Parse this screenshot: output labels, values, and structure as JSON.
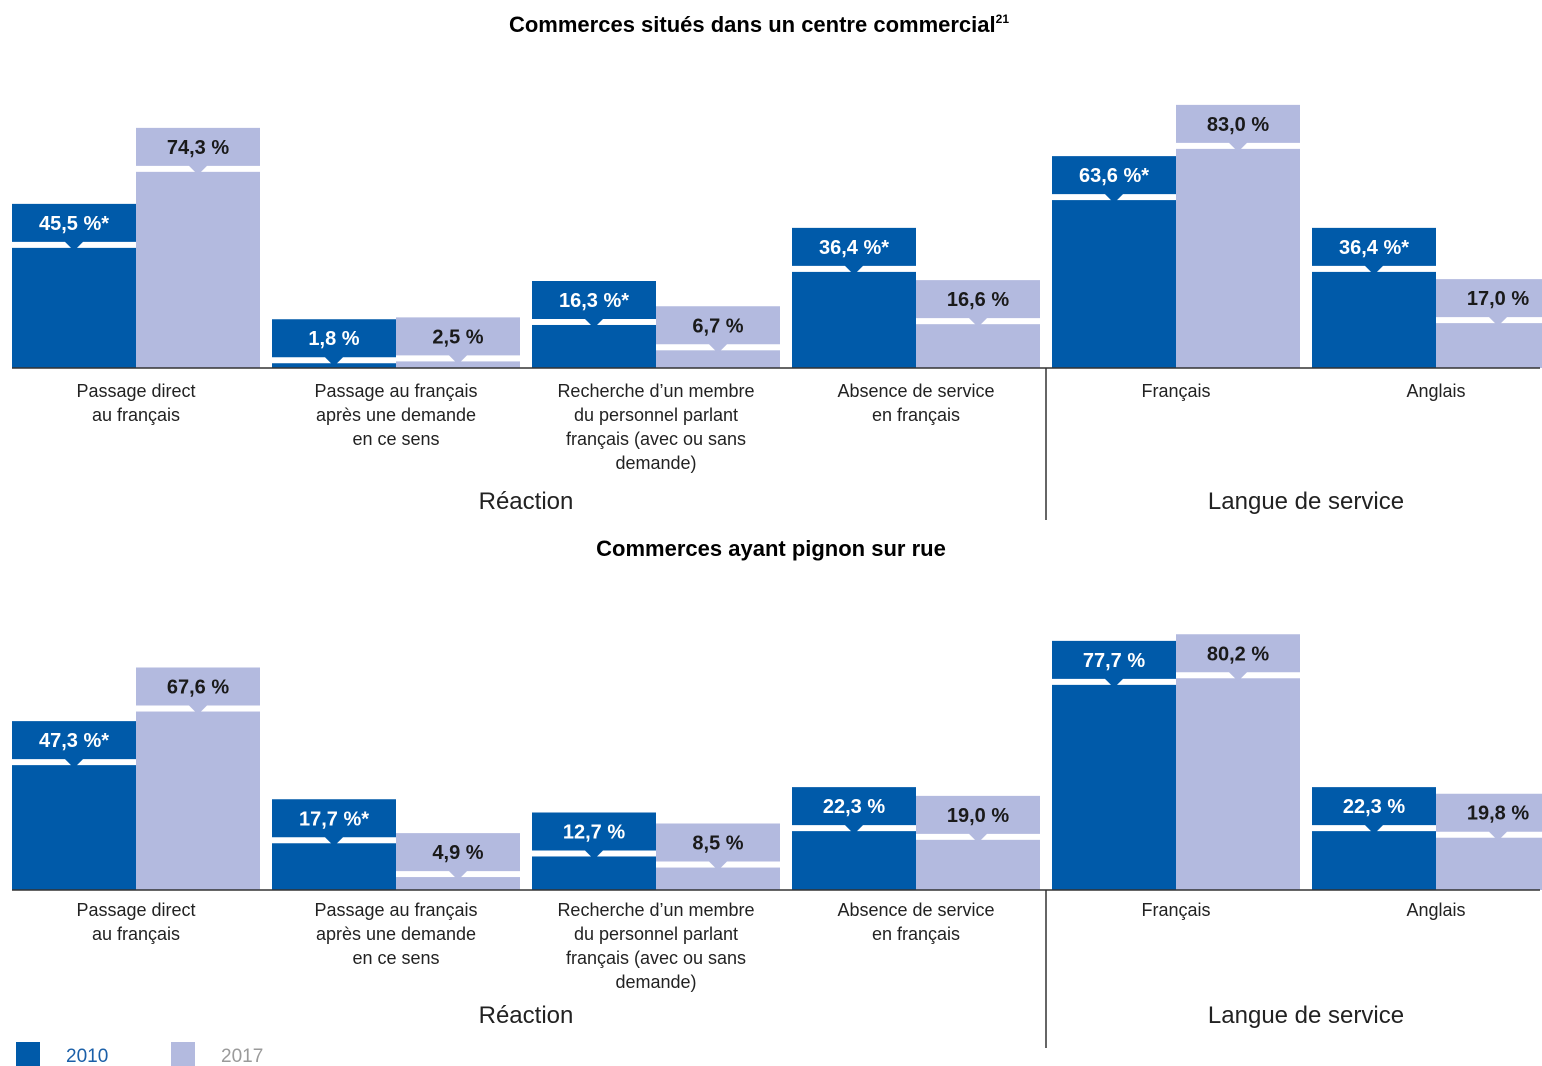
{
  "colors": {
    "y2010": "#005aa9",
    "y2017": "#b3badf",
    "axis": "#333333"
  },
  "legend": [
    {
      "label": "2010",
      "color": "#005aa9",
      "text_color": "#1a5fa8"
    },
    {
      "label": "2017",
      "color": "#b3badf",
      "text_color": "#9a9a9a"
    }
  ],
  "chart_data": [
    {
      "type": "bar",
      "title": "Commerces situés dans un centre commercial",
      "title_superscript": "21",
      "categories": [
        [
          "Passage direct",
          "au français"
        ],
        [
          "Passage au français",
          "après une demande",
          "en ce sens"
        ],
        [
          "Recherche d’un membre",
          "du personnel parlant",
          "français (avec ou sans",
          "demande)"
        ],
        [
          "Absence de service",
          "en français"
        ],
        [
          "Français"
        ],
        [
          "Anglais"
        ]
      ],
      "groups": [
        {
          "label": "Réaction",
          "categories": [
            0,
            1,
            2,
            3
          ]
        },
        {
          "label": "Langue de service",
          "categories": [
            4,
            5
          ]
        }
      ],
      "series": [
        {
          "name": "2010",
          "values": [
            45.5,
            1.8,
            16.3,
            36.4,
            63.6,
            36.4
          ],
          "labels": [
            "45,5 %*",
            "1,8 %",
            "16,3 %*",
            "36,4 %*",
            "63,6 %*",
            "36,4 %*"
          ]
        },
        {
          "name": "2017",
          "values": [
            74.3,
            2.5,
            6.7,
            16.6,
            83.0,
            17.0
          ],
          "labels": [
            "74,3 %",
            "2,5 %",
            "6,7 %",
            "16,6 %",
            "83,0 %",
            "17,0 %"
          ]
        }
      ],
      "ylim": [
        0,
        100
      ]
    },
    {
      "type": "bar",
      "title": "Commerces ayant pignon sur rue",
      "title_superscript": "",
      "categories": [
        [
          "Passage direct",
          "au français"
        ],
        [
          "Passage au français",
          "après une demande",
          "en ce sens"
        ],
        [
          "Recherche d’un membre",
          "du personnel parlant",
          "français (avec ou sans",
          "demande)"
        ],
        [
          "Absence de service",
          "en français"
        ],
        [
          "Français"
        ],
        [
          "Anglais"
        ]
      ],
      "groups": [
        {
          "label": "Réaction",
          "categories": [
            0,
            1,
            2,
            3
          ]
        },
        {
          "label": "Langue de service",
          "categories": [
            4,
            5
          ]
        }
      ],
      "series": [
        {
          "name": "2010",
          "values": [
            47.3,
            17.7,
            12.7,
            22.3,
            77.7,
            22.3
          ],
          "labels": [
            "47,3 %*",
            "17,7 %*",
            "12,7 %",
            "22,3 %",
            "77,7 %",
            "22,3 %"
          ]
        },
        {
          "name": "2017",
          "values": [
            67.6,
            4.9,
            8.5,
            19.0,
            80.2,
            19.8
          ],
          "labels": [
            "67,6 %",
            "4,9 %",
            "8,5 %",
            "19,0 %",
            "80,2 %",
            "19,8 %"
          ]
        }
      ],
      "ylim": [
        0,
        100
      ]
    }
  ]
}
